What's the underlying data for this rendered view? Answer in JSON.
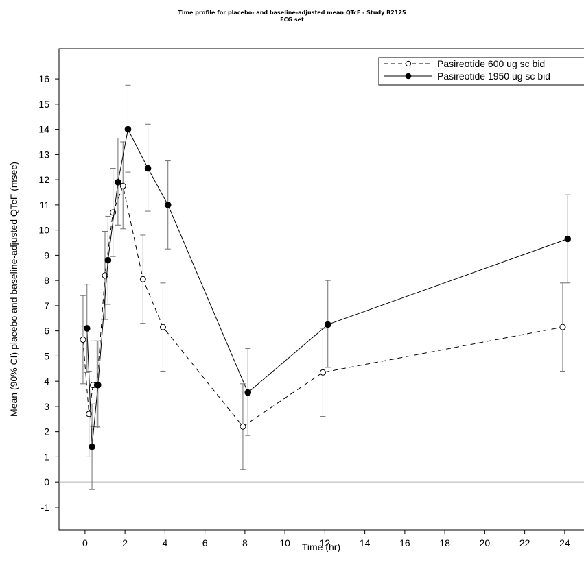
{
  "chart_data": {
    "type": "line",
    "title": "Time profile for placebo- and baseline-adjusted mean QTcF - Study B2125",
    "subtitle": "ECG set",
    "xlabel": "Time (hr)",
    "ylabel": "Mean (90% CI) placebo and baseline-adjusted QTcF (msec)",
    "xlim": [
      -1.3,
      25
    ],
    "ylim": [
      -1.9,
      17.2
    ],
    "xticks": [
      0,
      2,
      4,
      6,
      8,
      10,
      12,
      14,
      16,
      18,
      20,
      22,
      24
    ],
    "yticks": [
      -1,
      0,
      1,
      2,
      3,
      4,
      5,
      6,
      7,
      8,
      9,
      10,
      11,
      12,
      13,
      14,
      15,
      16
    ],
    "reference_line_y": 0,
    "legend_position": "top-right",
    "series": [
      {
        "name": "Pasireotide 600 ug sc bid",
        "line_style": "dashed",
        "marker": "open-circle",
        "x": [
          -0.1,
          0.2,
          0.4,
          0.6,
          1.0,
          1.4,
          1.9,
          2.9,
          3.9,
          7.9,
          11.9,
          23.9
        ],
        "y": [
          5.65,
          2.7,
          3.85,
          3.85,
          8.2,
          10.7,
          11.75,
          8.05,
          6.15,
          2.2,
          4.35,
          6.15
        ],
        "lower": [
          3.9,
          1.0,
          2.2,
          2.2,
          6.45,
          8.95,
          10.05,
          6.3,
          4.4,
          0.5,
          2.6,
          4.4
        ],
        "upper": [
          7.4,
          4.4,
          5.6,
          5.6,
          9.95,
          12.45,
          13.5,
          9.8,
          7.9,
          3.9,
          6.1,
          7.9
        ]
      },
      {
        "name": "Pasireotide 1950 ug sc bid",
        "line_style": "solid",
        "marker": "filled-circle",
        "x": [
          0.1,
          0.35,
          0.65,
          1.15,
          1.65,
          2.15,
          3.15,
          4.15,
          8.15,
          12.15,
          24.15
        ],
        "y": [
          6.1,
          1.4,
          3.85,
          8.8,
          11.9,
          14.0,
          12.45,
          11.0,
          3.55,
          6.25,
          9.65
        ],
        "lower": [
          4.35,
          -0.3,
          2.15,
          7.05,
          10.2,
          12.3,
          10.75,
          9.25,
          1.85,
          4.55,
          7.9
        ],
        "upper": [
          7.85,
          3.1,
          5.6,
          10.55,
          13.65,
          15.75,
          14.2,
          12.75,
          5.3,
          8.0,
          11.4
        ]
      }
    ]
  }
}
